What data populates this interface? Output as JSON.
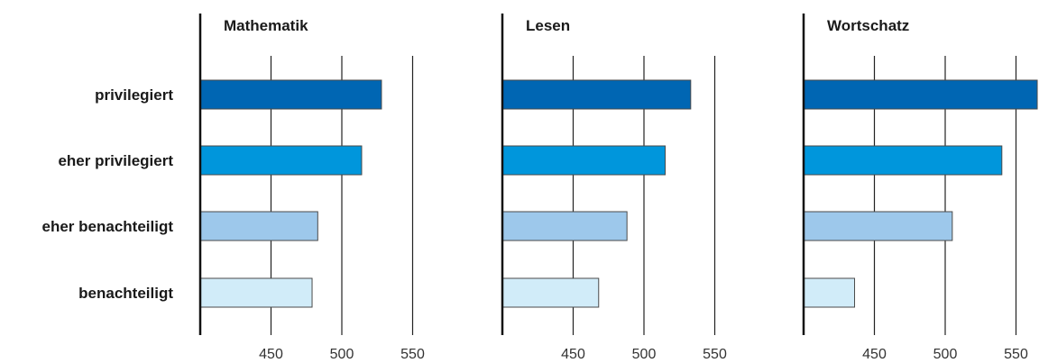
{
  "chart_data": {
    "type": "bar",
    "orientation": "horizontal",
    "categories": [
      "privilegiert",
      "eher privilegiert",
      "eher benachteiligt",
      "benachteiligt"
    ],
    "panels": [
      {
        "title": "Mathematik",
        "values": [
          528,
          514,
          483,
          479
        ]
      },
      {
        "title": "Lesen",
        "values": [
          533,
          515,
          488,
          468
        ]
      },
      {
        "title": "Wortschatz",
        "values": [
          565,
          540,
          505,
          436
        ]
      }
    ],
    "xlim": [
      400,
      570
    ],
    "xticks": [
      450,
      500,
      550
    ],
    "grid": true,
    "colors": [
      "#0066b3",
      "#0096dc",
      "#9dc8eb",
      "#d1ecf9"
    ],
    "bar_stroke": "#4a4a4a"
  }
}
